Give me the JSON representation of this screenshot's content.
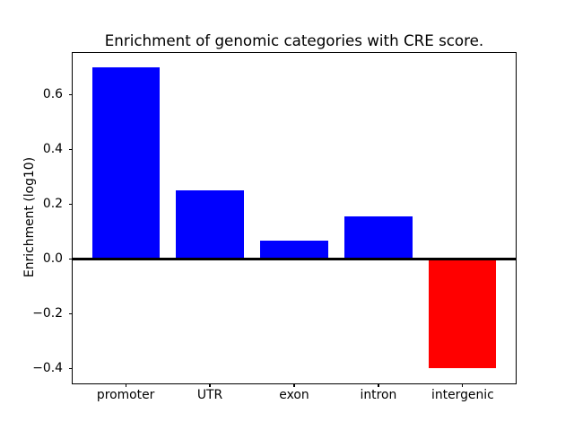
{
  "figure": {
    "background_color": "#ffffff",
    "title": "Enrichment of genomic categories with CRE score."
  },
  "chart_data": {
    "type": "bar",
    "title": "Enrichment of genomic categories with CRE score.",
    "xlabel": "",
    "ylabel": "Enrichment (log10)",
    "categories": [
      "promoter",
      "UTR",
      "exon",
      "intron",
      "intergenic"
    ],
    "values": [
      0.7,
      0.25,
      0.068,
      0.157,
      -0.4
    ],
    "bar_colors": [
      "#0000ff",
      "#0000ff",
      "#0000ff",
      "#0000ff",
      "#ff0000"
    ],
    "positive_color": "#0000ff",
    "negative_color": "#ff0000",
    "yticks": [
      0.6,
      0.4,
      0.2,
      0.0,
      -0.2,
      -0.4
    ],
    "ytick_labels": [
      "0.6",
      "0.4",
      "0.2",
      "0.0",
      "−0.2",
      "−0.4"
    ],
    "ylim": [
      -0.455,
      0.757
    ],
    "xlim": [
      -0.64,
      4.64
    ],
    "bar_width": 0.8,
    "zero_line": {
      "y": 0.0,
      "color": "#000000"
    },
    "axis_color": "#000000",
    "grid": false,
    "legend": "none"
  }
}
